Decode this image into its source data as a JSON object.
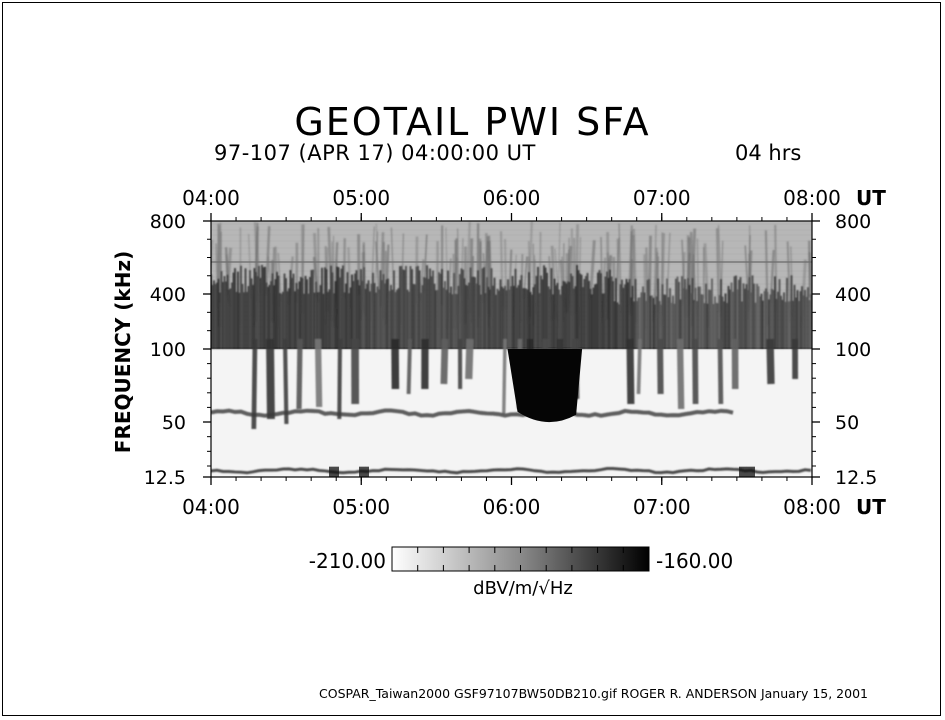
{
  "header": {
    "title": "GEOTAIL PWI SFA",
    "subtitle": "97-107 (APR 17) 04:00:00 UT",
    "duration": "04 hrs"
  },
  "footer": {
    "text": "COSPAR_Taiwan2000 GSF97107BW50DB210.gif ROGER R. ANDERSON January 15, 2001"
  },
  "chart_data": {
    "type": "heatmap",
    "title": "GEOTAIL PWI SFA",
    "ylabel": "FREQUENCY (kHz)",
    "x_unit_label": "UT",
    "x_ticks": [
      "04:00",
      "05:00",
      "06:00",
      "07:00",
      "08:00"
    ],
    "y_ticks": [
      "800",
      "400",
      "100",
      "50",
      "12.5"
    ],
    "x_range": [
      "04:00",
      "08:00"
    ],
    "y_range": [
      12.5,
      800
    ],
    "colorbar": {
      "min_label": "-210.00",
      "max_label": "-160.00",
      "unit": "dBV/m/√Hz",
      "min": -210,
      "max": -160,
      "colormap": "white-to-black"
    },
    "features": [
      {
        "band": "100-600 kHz",
        "time": "04:00-08:00",
        "intensity": "strong continuum emission"
      },
      {
        "band": "50-100 kHz",
        "time": "06:00-06:25",
        "intensity": "intense burst"
      },
      {
        "band": "~55 kHz",
        "time": "04:00-07:30",
        "intensity": "narrowband line"
      },
      {
        "band": "~25 kHz",
        "time": "04:00-08:00",
        "intensity": "narrowband line"
      }
    ]
  }
}
